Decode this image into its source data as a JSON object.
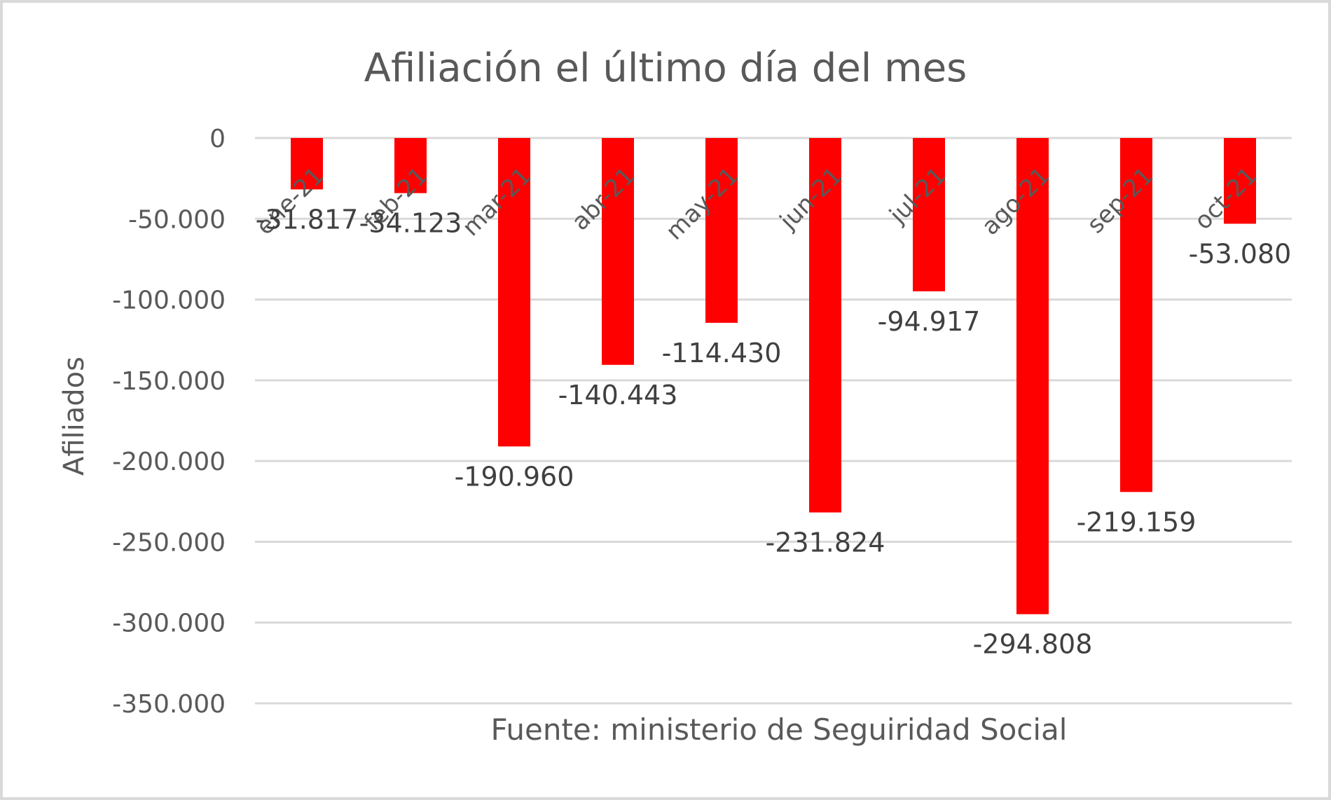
{
  "chart_data": {
    "type": "bar",
    "title": "Afiliación el último día del mes",
    "ylabel": "Afiliados",
    "xlabel": "",
    "note": "Fuente: ministerio de Seguiridad Social",
    "categories": [
      "ene-21",
      "feb-21",
      "mar-21",
      "abr-21",
      "may-21",
      "jun-21",
      "jul-21",
      "ago-21",
      "sep-21",
      "oct-21"
    ],
    "values": [
      -31817,
      -34123,
      -190960,
      -140443,
      -114430,
      -231824,
      -94917,
      -294808,
      -219159,
      -53080
    ],
    "value_labels": [
      "-31.817",
      "-34.123",
      "-190.960",
      "-140.443",
      "-114.430",
      "-231.824",
      "-94.917",
      "-294.808",
      "-219.159",
      "-53.080"
    ],
    "ylim": [
      -350000,
      0
    ],
    "yticks": [
      0,
      -50000,
      -100000,
      -150000,
      -200000,
      -250000,
      -300000,
      -350000
    ],
    "ytick_labels": [
      "0",
      "-50.000",
      "-100.000",
      "-150.000",
      "-200.000",
      "-250.000",
      "-300.000",
      "-350.000"
    ],
    "grid": true,
    "bar_color": "#ff0000"
  }
}
